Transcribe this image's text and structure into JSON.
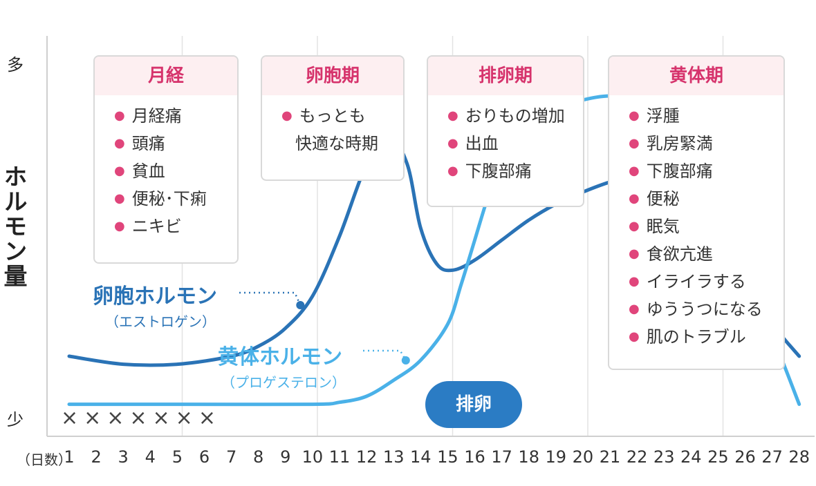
{
  "chart_data": {
    "type": "line",
    "x": [
      1,
      2,
      3,
      4,
      5,
      6,
      7,
      8,
      9,
      10,
      11,
      12,
      13,
      14,
      15,
      16,
      17,
      18,
      19,
      20,
      21,
      22,
      23,
      24,
      25,
      26,
      27,
      28
    ],
    "xlabel": "（日数）",
    "ylabel": "ホルモン量",
    "y_top_label": "多",
    "y_bottom_label": "少",
    "series": [
      {
        "name": "卵胞ホルモン",
        "sub": "（エストロゲン）",
        "color": "#2a73b6",
        "points": [
          [
            1,
            0.2
          ],
          [
            3,
            0.18
          ],
          [
            5,
            0.18
          ],
          [
            7,
            0.2
          ],
          [
            8,
            0.225
          ],
          [
            9,
            0.27
          ],
          [
            10,
            0.35
          ],
          [
            11,
            0.5
          ],
          [
            12,
            0.68
          ],
          [
            12.8,
            0.75
          ],
          [
            13.5,
            0.68
          ],
          [
            14,
            0.52
          ],
          [
            14.6,
            0.43
          ],
          [
            15.2,
            0.415
          ],
          [
            16,
            0.44
          ],
          [
            17,
            0.49
          ],
          [
            18,
            0.54
          ],
          [
            19,
            0.58
          ],
          [
            20,
            0.61
          ],
          [
            21,
            0.635
          ],
          [
            22,
            0.65
          ],
          [
            23,
            0.64
          ],
          [
            24,
            0.6
          ],
          [
            25,
            0.52
          ],
          [
            26,
            0.38
          ],
          [
            27,
            0.28
          ],
          [
            28,
            0.2
          ]
        ]
      },
      {
        "name": "黄体ホルモン",
        "sub": "（プロゲステロン）",
        "color": "#4ab1e8",
        "points": [
          [
            1,
            0.08
          ],
          [
            5,
            0.08
          ],
          [
            10,
            0.08
          ],
          [
            11,
            0.085
          ],
          [
            12,
            0.1
          ],
          [
            13,
            0.14
          ],
          [
            14,
            0.19
          ],
          [
            15,
            0.28
          ],
          [
            15.5,
            0.38
          ],
          [
            16,
            0.49
          ],
          [
            16.5,
            0.6
          ],
          [
            17,
            0.69
          ],
          [
            18,
            0.79
          ],
          [
            19,
            0.82
          ],
          [
            20,
            0.84
          ],
          [
            21,
            0.85
          ],
          [
            22,
            0.84
          ],
          [
            23,
            0.8
          ],
          [
            24,
            0.72
          ],
          [
            24.5,
            0.66
          ],
          [
            25,
            0.56
          ],
          [
            25.5,
            0.46
          ],
          [
            26,
            0.38
          ],
          [
            27,
            0.25
          ],
          [
            28,
            0.08
          ]
        ]
      }
    ],
    "vertical_grid_days": [
      1,
      6,
      11,
      16,
      21,
      26
    ],
    "phases": [
      {
        "title": "月経",
        "items": [
          "月経痛",
          "頭痛",
          "貧血",
          "便秘･下痢",
          "ニキビ"
        ]
      },
      {
        "title": "卵胞期",
        "items": [
          "もっとも"
        ],
        "continuation": "快適な時期"
      },
      {
        "title": "排卵期",
        "items": [
          "おりもの増加",
          "出血",
          "下腹部痛"
        ]
      },
      {
        "title": "黄体期",
        "items": [
          "浮腫",
          "乳房緊満",
          "下腹部痛",
          "便秘",
          "眠気",
          "食欲亢進",
          "イライラする",
          "ゆううつになる",
          "肌のトラブル"
        ]
      }
    ],
    "ovulation_label": "排卵",
    "menses_marks": "×××××××"
  }
}
